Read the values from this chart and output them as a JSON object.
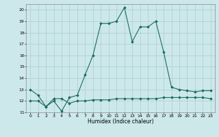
{
  "title": "",
  "xlabel": "Humidex (Indice chaleur)",
  "x": [
    0,
    1,
    2,
    3,
    4,
    5,
    6,
    7,
    8,
    9,
    10,
    11,
    12,
    13,
    14,
    15,
    16,
    17,
    18,
    19,
    20,
    21,
    22,
    23
  ],
  "y_upper": [
    13,
    12.5,
    11.5,
    12.0,
    11.1,
    12.3,
    12.5,
    14.3,
    16.0,
    18.8,
    18.8,
    19.0,
    20.2,
    17.2,
    18.5,
    18.5,
    19.0,
    16.3,
    13.2,
    13.0,
    12.9,
    12.8,
    12.9,
    12.9
  ],
  "y_lower": [
    12.0,
    12.0,
    11.5,
    12.2,
    12.2,
    11.8,
    12.0,
    12.0,
    12.1,
    12.1,
    12.1,
    12.2,
    12.2,
    12.2,
    12.2,
    12.2,
    12.2,
    12.3,
    12.3,
    12.3,
    12.3,
    12.3,
    12.3,
    12.2
  ],
  "line_color": "#1a6b5a",
  "bg_color": "#cce8eb",
  "grid_color": "#aacccc",
  "ylim": [
    11,
    20.5
  ],
  "yticks": [
    11,
    12,
    13,
    14,
    15,
    16,
    17,
    18,
    19,
    20
  ],
  "xlim": [
    -0.5,
    23.5
  ],
  "xticks": [
    0,
    1,
    2,
    3,
    4,
    5,
    6,
    7,
    8,
    9,
    10,
    11,
    12,
    13,
    14,
    15,
    16,
    17,
    18,
    19,
    20,
    21,
    22,
    23
  ]
}
